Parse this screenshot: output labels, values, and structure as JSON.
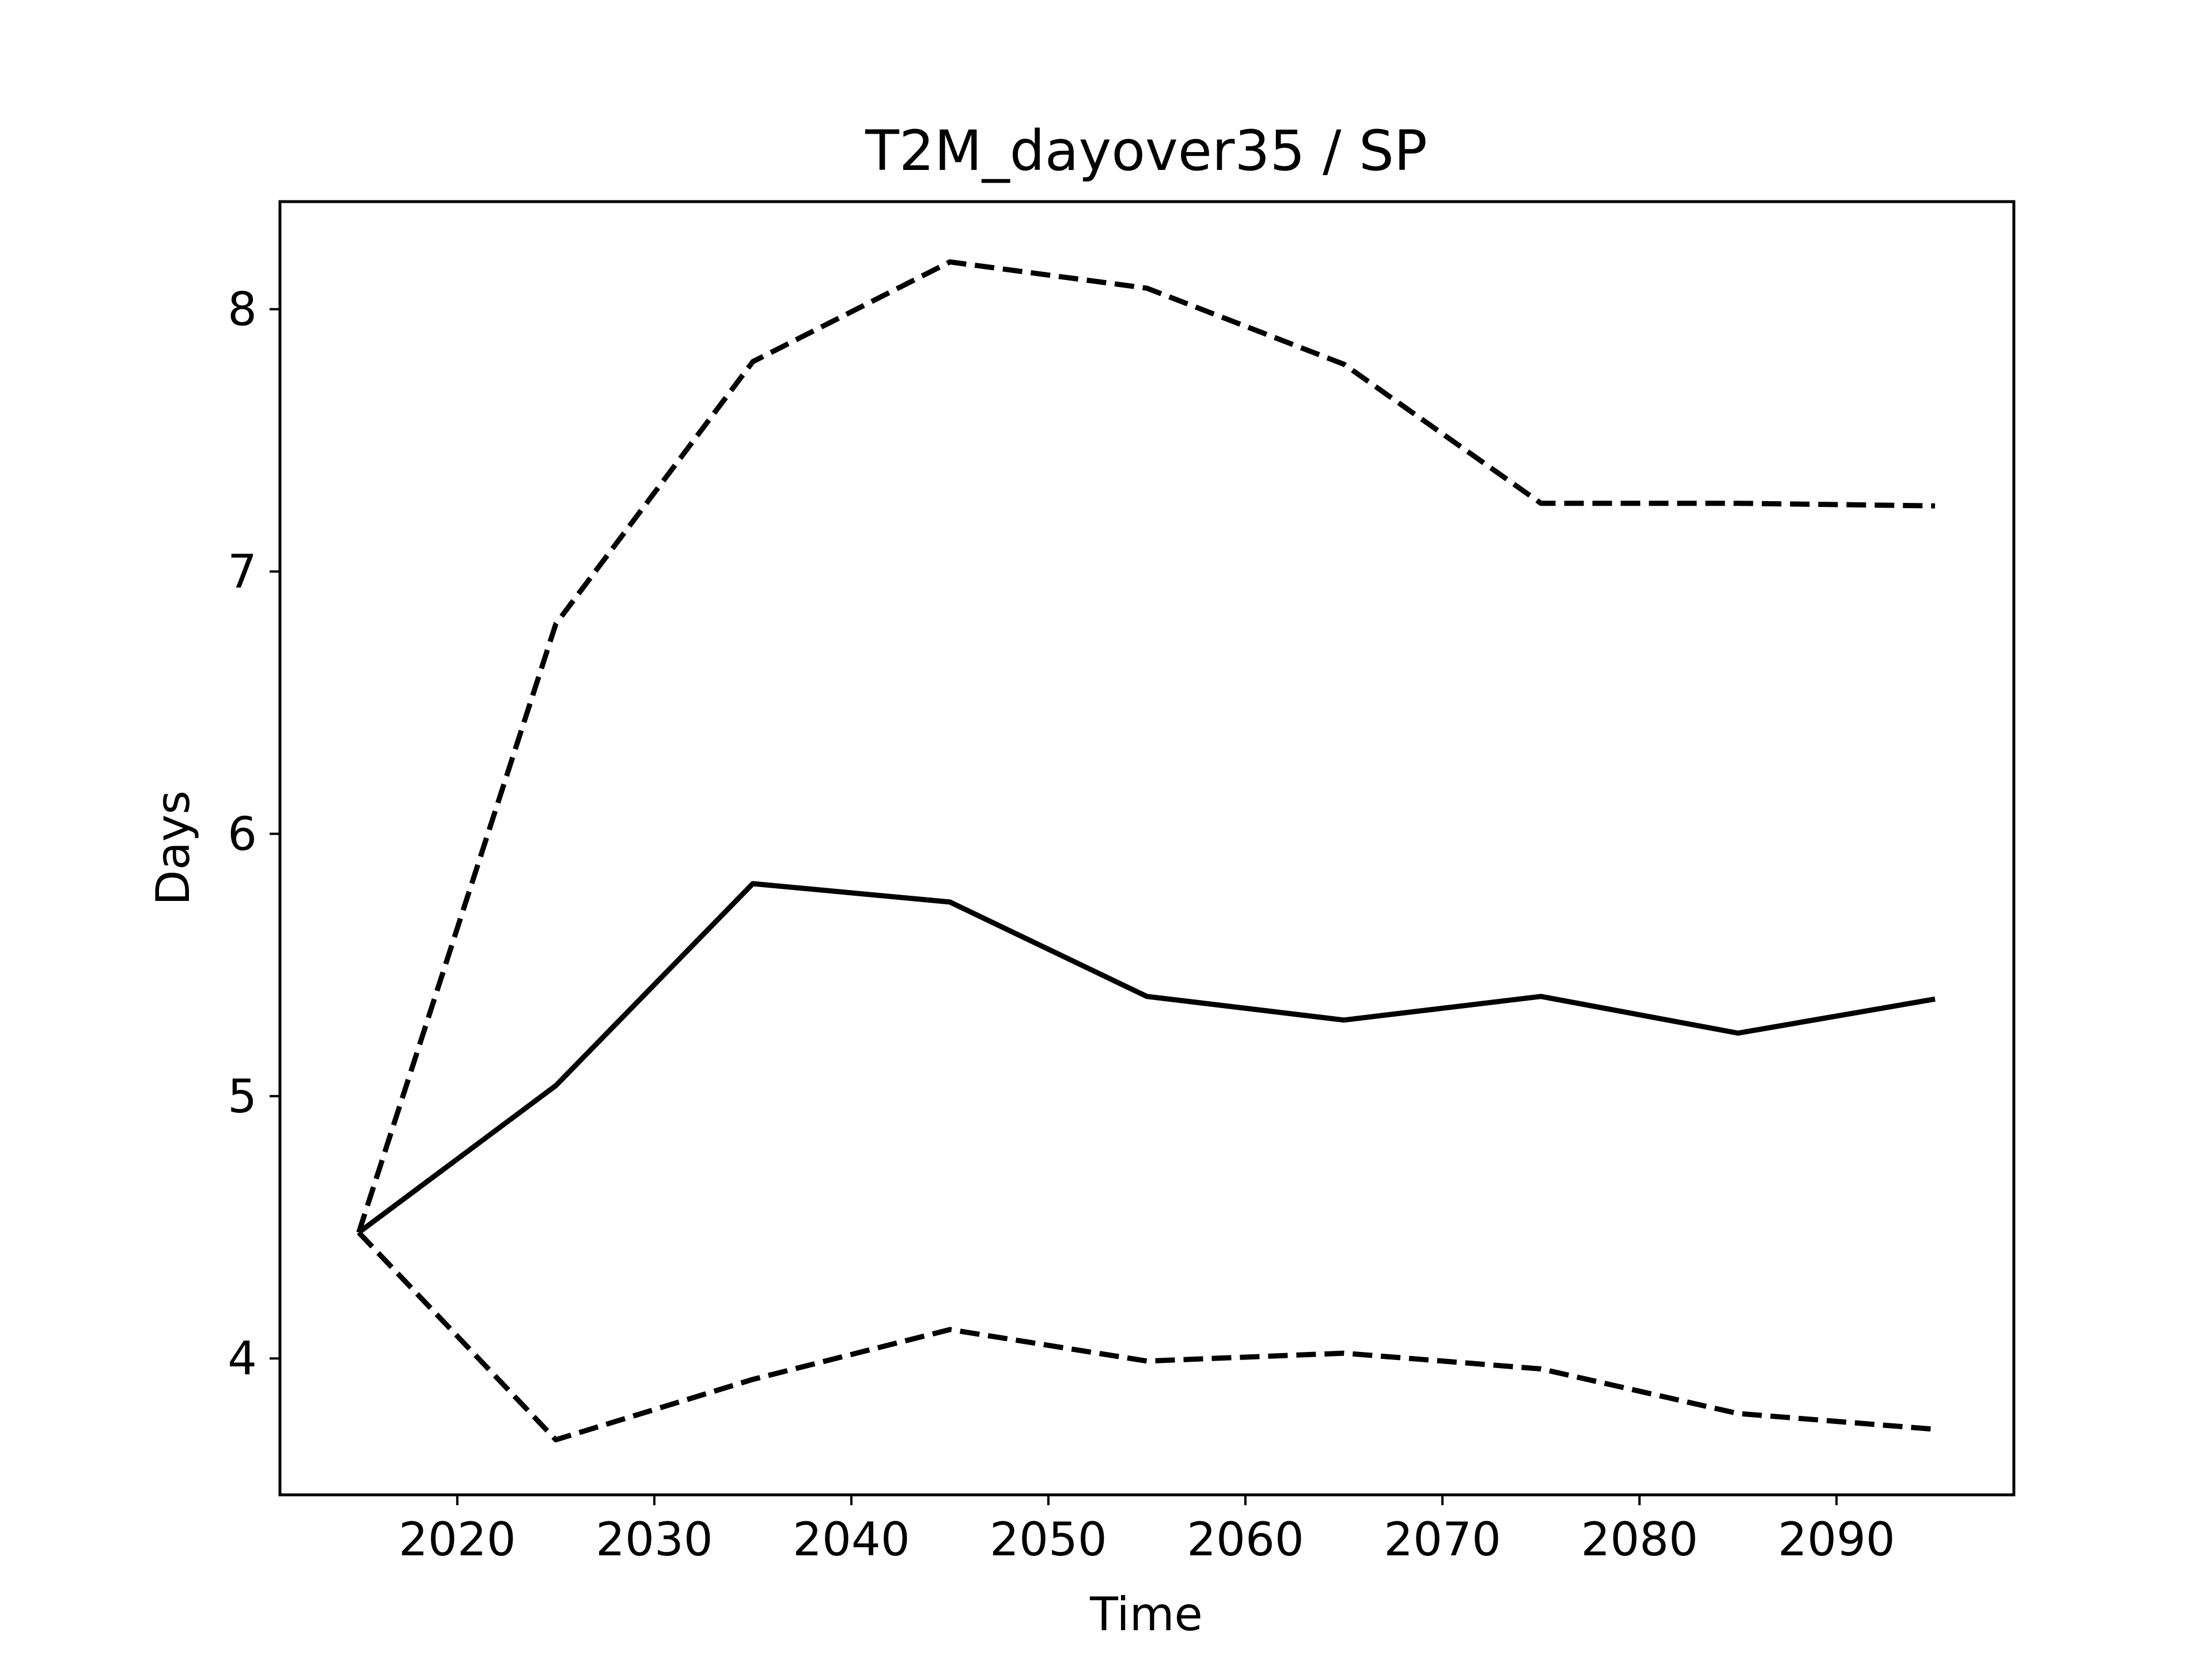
{
  "chart_data": {
    "type": "line",
    "title": "T2M_dayover35 / SP",
    "xlabel": "Time",
    "ylabel": "Days",
    "xlim": [
      2011,
      2099
    ],
    "ylim": [
      3.48,
      8.41
    ],
    "xticks": [
      2020,
      2030,
      2040,
      2050,
      2060,
      2070,
      2080,
      2090
    ],
    "yticks": [
      4,
      5,
      6,
      7,
      8
    ],
    "grid": false,
    "x": [
      2015,
      2025,
      2035,
      2045,
      2055,
      2065,
      2075,
      2085,
      2095
    ],
    "series": [
      {
        "style": "solid",
        "color": "#000000",
        "values": [
          4.48,
          5.04,
          5.81,
          5.74,
          5.38,
          5.29,
          5.38,
          5.24,
          5.37
        ]
      },
      {
        "style": "dashed",
        "color": "#000000",
        "values": [
          4.48,
          6.8,
          7.8,
          8.18,
          8.08,
          7.79,
          7.26,
          7.26,
          7.25
        ]
      },
      {
        "style": "dashed",
        "color": "#000000",
        "values": [
          4.48,
          3.69,
          3.92,
          4.11,
          3.99,
          4.02,
          3.96,
          3.79,
          3.73
        ]
      }
    ]
  }
}
